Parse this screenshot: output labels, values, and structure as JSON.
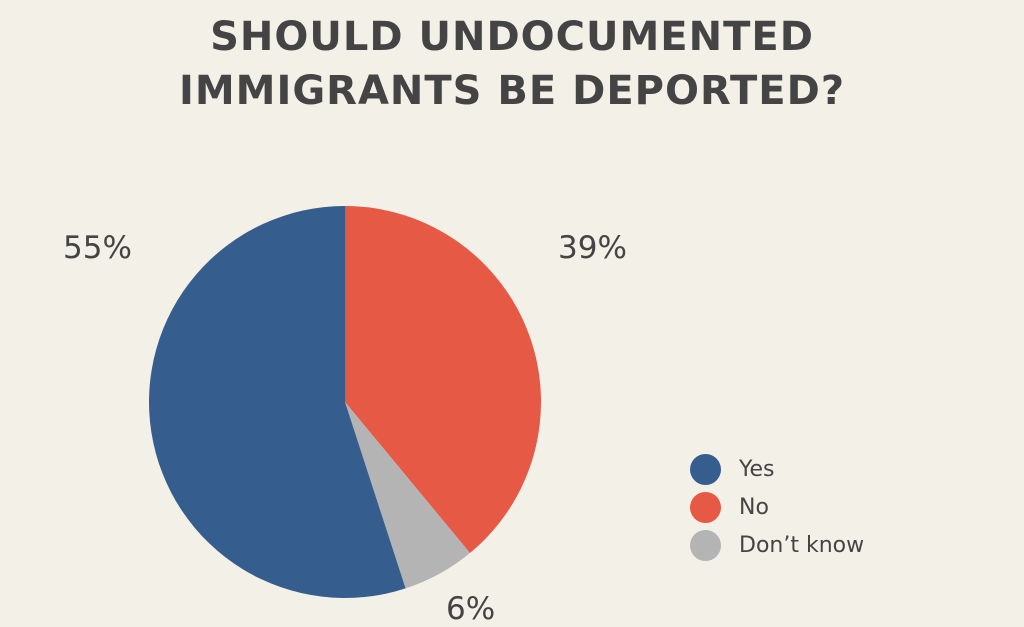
{
  "title_lines": [
    "SHOULD UNDOCUMENTED",
    "IMMIGRANTS BE DEPORTED?"
  ],
  "chart_data": {
    "type": "pie",
    "title": "SHOULD UNDOCUMENTED IMMIGRANTS BE DEPORTED?",
    "categories": [
      "Yes",
      "No",
      "Don’t know"
    ],
    "values": [
      55,
      39,
      6
    ],
    "labels": [
      "55%",
      "39%",
      "6%"
    ],
    "colors": [
      "#355d8d",
      "#e65a45",
      "#b4b4b4"
    ],
    "unit": "%",
    "legend_placement": "right",
    "start": "top, clockwise from 'No'"
  }
}
